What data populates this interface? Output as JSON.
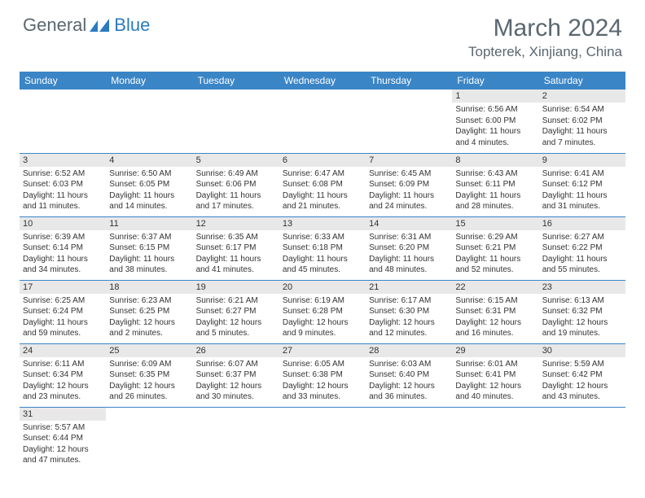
{
  "logo": {
    "general": "General",
    "blue": "Blue"
  },
  "header": {
    "month": "March 2024",
    "location": "Topterek, Xinjiang, China"
  },
  "columns": [
    "Sunday",
    "Monday",
    "Tuesday",
    "Wednesday",
    "Thursday",
    "Friday",
    "Saturday"
  ],
  "colors": {
    "header_bg": "#3a85c6",
    "header_text": "#ffffff",
    "daynum_bg": "#e8e8e8",
    "border": "#3a85c6",
    "logo_gray": "#5a6770",
    "logo_blue": "#2a7bbf"
  },
  "weeks": [
    [
      null,
      null,
      null,
      null,
      null,
      {
        "n": "1",
        "sunrise": "6:56 AM",
        "sunset": "6:00 PM",
        "daylight": "11 hours and 4 minutes."
      },
      {
        "n": "2",
        "sunrise": "6:54 AM",
        "sunset": "6:02 PM",
        "daylight": "11 hours and 7 minutes."
      }
    ],
    [
      {
        "n": "3",
        "sunrise": "6:52 AM",
        "sunset": "6:03 PM",
        "daylight": "11 hours and 11 minutes."
      },
      {
        "n": "4",
        "sunrise": "6:50 AM",
        "sunset": "6:05 PM",
        "daylight": "11 hours and 14 minutes."
      },
      {
        "n": "5",
        "sunrise": "6:49 AM",
        "sunset": "6:06 PM",
        "daylight": "11 hours and 17 minutes."
      },
      {
        "n": "6",
        "sunrise": "6:47 AM",
        "sunset": "6:08 PM",
        "daylight": "11 hours and 21 minutes."
      },
      {
        "n": "7",
        "sunrise": "6:45 AM",
        "sunset": "6:09 PM",
        "daylight": "11 hours and 24 minutes."
      },
      {
        "n": "8",
        "sunrise": "6:43 AM",
        "sunset": "6:11 PM",
        "daylight": "11 hours and 28 minutes."
      },
      {
        "n": "9",
        "sunrise": "6:41 AM",
        "sunset": "6:12 PM",
        "daylight": "11 hours and 31 minutes."
      }
    ],
    [
      {
        "n": "10",
        "sunrise": "6:39 AM",
        "sunset": "6:14 PM",
        "daylight": "11 hours and 34 minutes."
      },
      {
        "n": "11",
        "sunrise": "6:37 AM",
        "sunset": "6:15 PM",
        "daylight": "11 hours and 38 minutes."
      },
      {
        "n": "12",
        "sunrise": "6:35 AM",
        "sunset": "6:17 PM",
        "daylight": "11 hours and 41 minutes."
      },
      {
        "n": "13",
        "sunrise": "6:33 AM",
        "sunset": "6:18 PM",
        "daylight": "11 hours and 45 minutes."
      },
      {
        "n": "14",
        "sunrise": "6:31 AM",
        "sunset": "6:20 PM",
        "daylight": "11 hours and 48 minutes."
      },
      {
        "n": "15",
        "sunrise": "6:29 AM",
        "sunset": "6:21 PM",
        "daylight": "11 hours and 52 minutes."
      },
      {
        "n": "16",
        "sunrise": "6:27 AM",
        "sunset": "6:22 PM",
        "daylight": "11 hours and 55 minutes."
      }
    ],
    [
      {
        "n": "17",
        "sunrise": "6:25 AM",
        "sunset": "6:24 PM",
        "daylight": "11 hours and 59 minutes."
      },
      {
        "n": "18",
        "sunrise": "6:23 AM",
        "sunset": "6:25 PM",
        "daylight": "12 hours and 2 minutes."
      },
      {
        "n": "19",
        "sunrise": "6:21 AM",
        "sunset": "6:27 PM",
        "daylight": "12 hours and 5 minutes."
      },
      {
        "n": "20",
        "sunrise": "6:19 AM",
        "sunset": "6:28 PM",
        "daylight": "12 hours and 9 minutes."
      },
      {
        "n": "21",
        "sunrise": "6:17 AM",
        "sunset": "6:30 PM",
        "daylight": "12 hours and 12 minutes."
      },
      {
        "n": "22",
        "sunrise": "6:15 AM",
        "sunset": "6:31 PM",
        "daylight": "12 hours and 16 minutes."
      },
      {
        "n": "23",
        "sunrise": "6:13 AM",
        "sunset": "6:32 PM",
        "daylight": "12 hours and 19 minutes."
      }
    ],
    [
      {
        "n": "24",
        "sunrise": "6:11 AM",
        "sunset": "6:34 PM",
        "daylight": "12 hours and 23 minutes."
      },
      {
        "n": "25",
        "sunrise": "6:09 AM",
        "sunset": "6:35 PM",
        "daylight": "12 hours and 26 minutes."
      },
      {
        "n": "26",
        "sunrise": "6:07 AM",
        "sunset": "6:37 PM",
        "daylight": "12 hours and 30 minutes."
      },
      {
        "n": "27",
        "sunrise": "6:05 AM",
        "sunset": "6:38 PM",
        "daylight": "12 hours and 33 minutes."
      },
      {
        "n": "28",
        "sunrise": "6:03 AM",
        "sunset": "6:40 PM",
        "daylight": "12 hours and 36 minutes."
      },
      {
        "n": "29",
        "sunrise": "6:01 AM",
        "sunset": "6:41 PM",
        "daylight": "12 hours and 40 minutes."
      },
      {
        "n": "30",
        "sunrise": "5:59 AM",
        "sunset": "6:42 PM",
        "daylight": "12 hours and 43 minutes."
      }
    ],
    [
      {
        "n": "31",
        "sunrise": "5:57 AM",
        "sunset": "6:44 PM",
        "daylight": "12 hours and 47 minutes."
      },
      null,
      null,
      null,
      null,
      null,
      null
    ]
  ],
  "labels": {
    "sunrise": "Sunrise:",
    "sunset": "Sunset:",
    "daylight": "Daylight:"
  }
}
